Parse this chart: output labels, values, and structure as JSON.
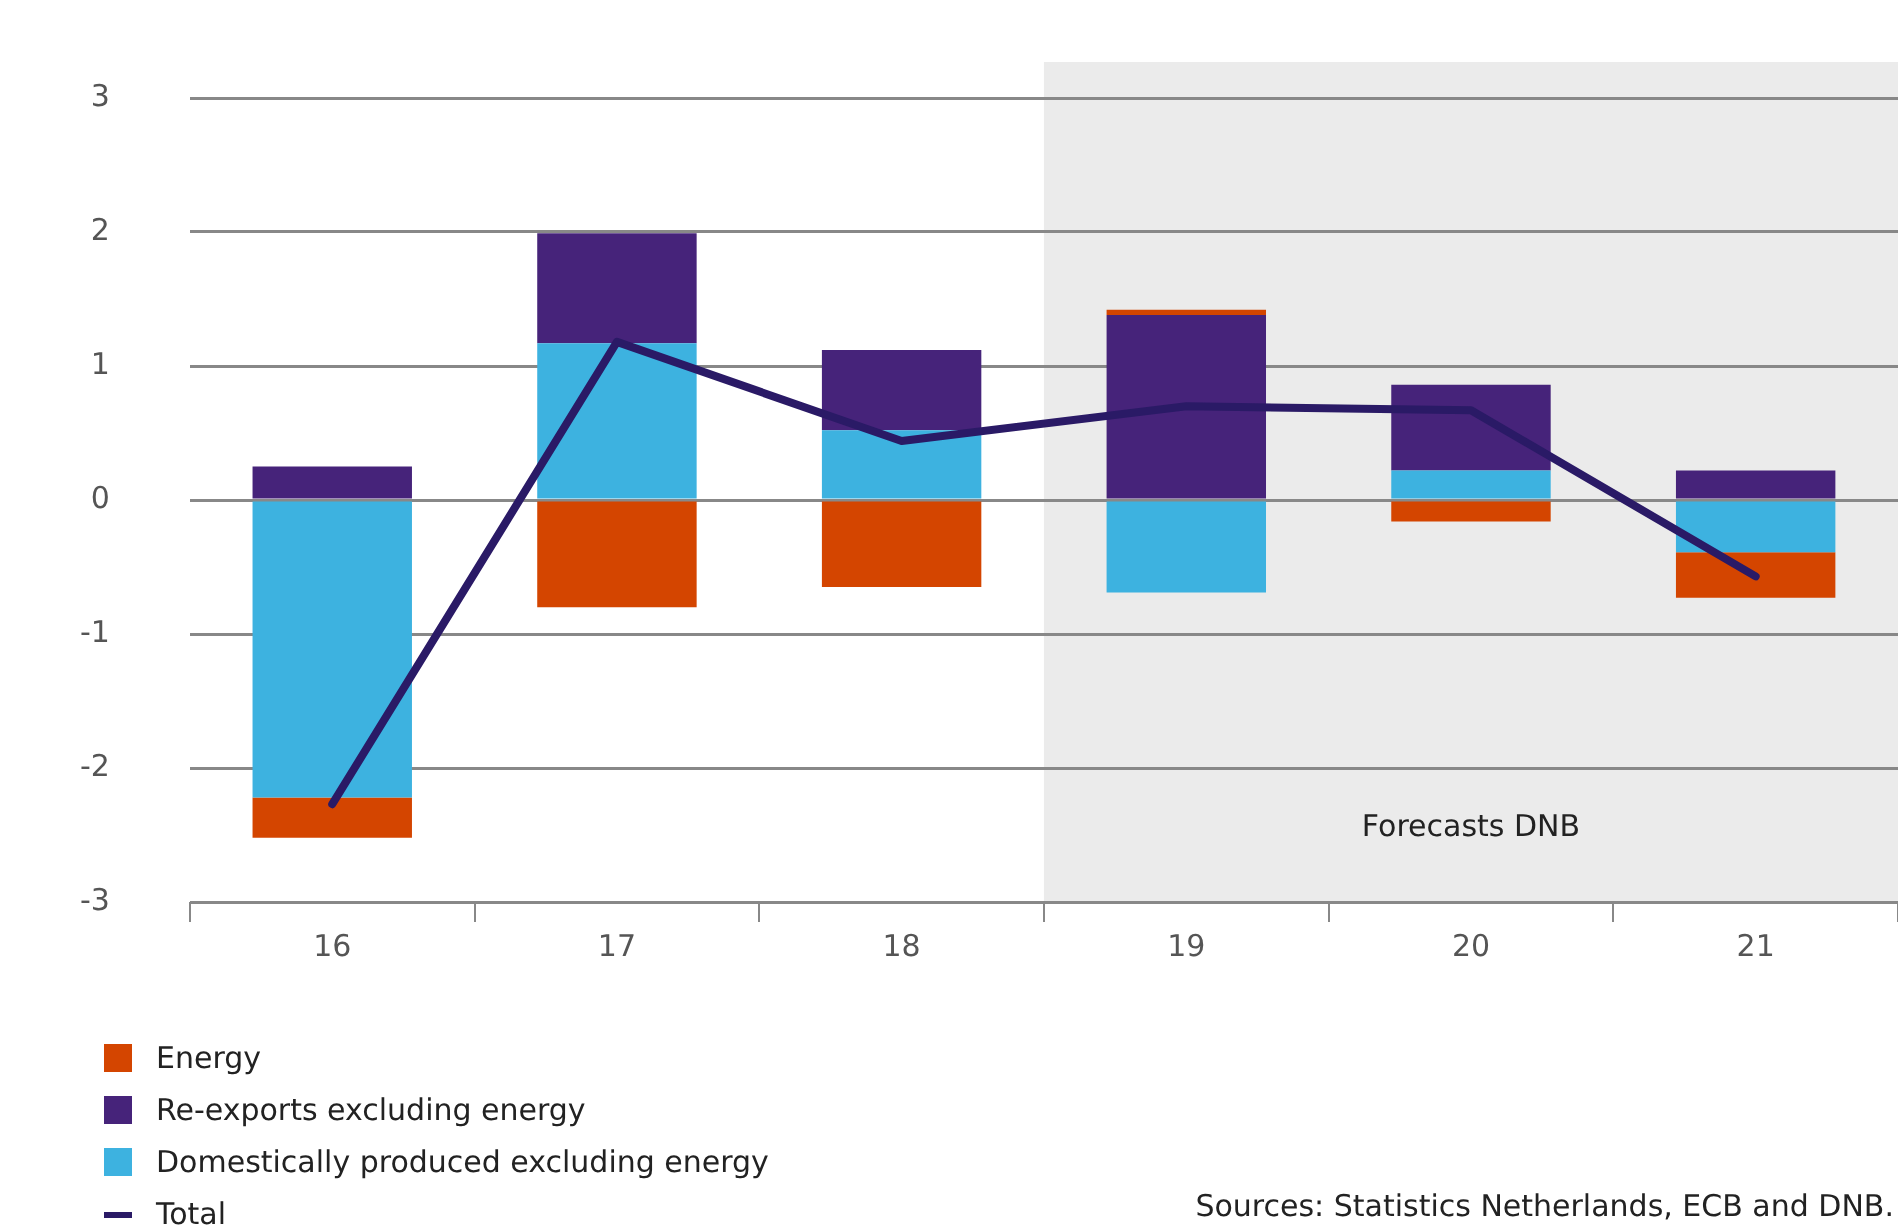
{
  "chart_data": {
    "type": "bar",
    "stacked": true,
    "categories": [
      "16",
      "17",
      "18",
      "19",
      "20",
      "21"
    ],
    "series": [
      {
        "name": "Domestically produced excluding energy",
        "color": "#3db2e0",
        "values": [
          -2.22,
          1.17,
          0.52,
          -0.69,
          0.22,
          -0.39
        ]
      },
      {
        "name": "Re-exports excluding energy",
        "color": "#46237a",
        "values": [
          0.25,
          0.82,
          0.6,
          1.38,
          0.64,
          0.22
        ]
      },
      {
        "name": "Energy",
        "color": "#d44500",
        "values": [
          -0.3,
          -0.8,
          -0.65,
          0.04,
          -0.16,
          -0.34
        ]
      },
      {
        "name": "Total",
        "type": "line",
        "color": "#2a1a66",
        "values": [
          -2.27,
          1.18,
          0.44,
          0.7,
          0.67,
          -0.57
        ]
      }
    ],
    "ylim": [
      -3,
      3
    ],
    "yticks": [
      -3,
      -2,
      -1,
      0,
      1,
      2,
      3
    ],
    "grid": "y",
    "legend": "bottom left",
    "marker": "none",
    "bands": [
      {
        "axis": "x",
        "from": "19",
        "to": "21",
        "label": "Forecasts DNB",
        "color": "#ebebeb"
      }
    ],
    "annotations": [
      "Sources: Statistics Netherlands, ECB and DNB."
    ]
  }
}
